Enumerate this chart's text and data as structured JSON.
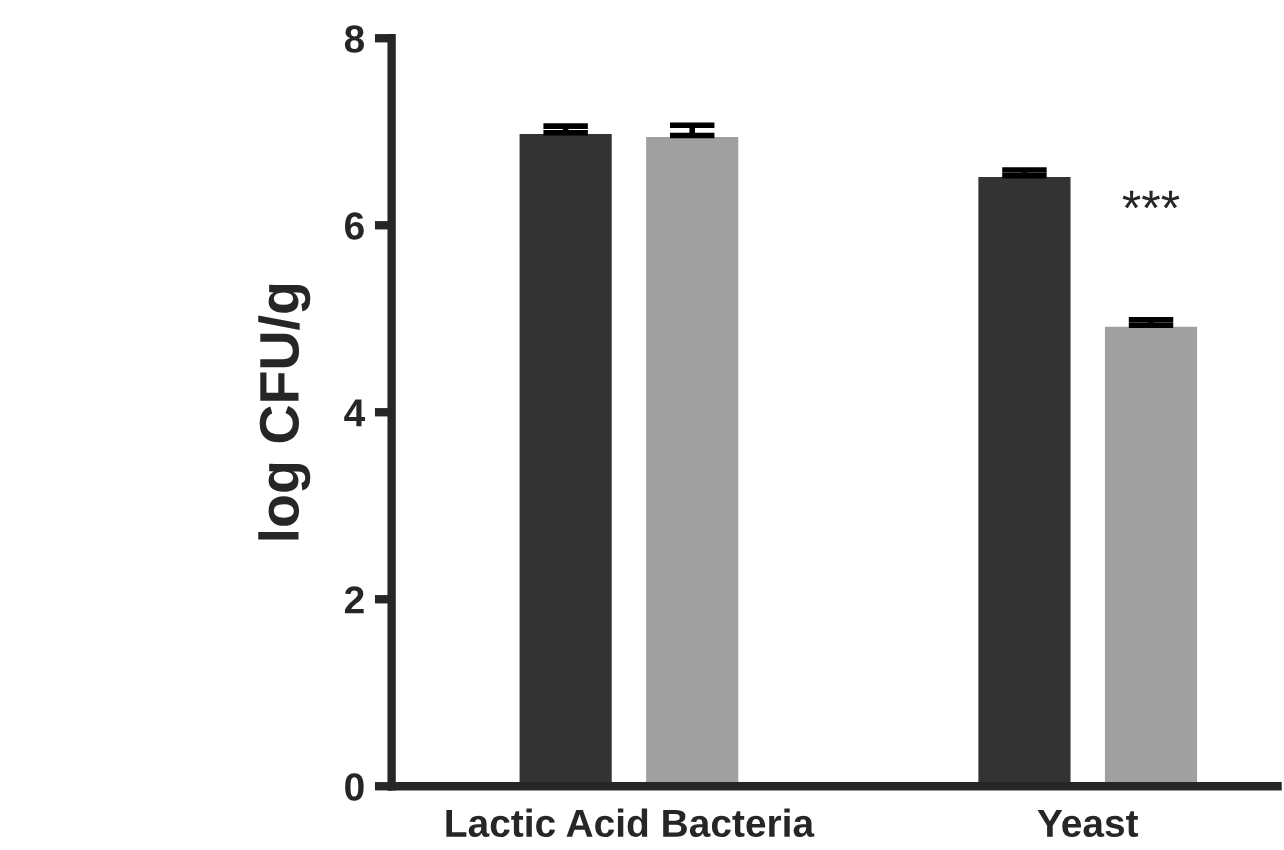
{
  "chart_data": {
    "type": "bar",
    "ylabel": "log CFU/g",
    "categories": [
      "Lactic Acid Bacteria",
      "Yeast"
    ],
    "series": [
      {
        "color": "#333333",
        "values": [
          6.99,
          6.53
        ],
        "errors": [
          0.07,
          0.06
        ]
      },
      {
        "color": "#a0a0a0",
        "values": [
          6.96,
          4.93
        ],
        "errors": [
          0.11,
          0.06
        ]
      }
    ],
    "ylim": [
      0,
      8
    ],
    "yticks": [
      0,
      2,
      4,
      6,
      8
    ],
    "grid": false,
    "legend": false,
    "annotations": [
      "***"
    ]
  }
}
